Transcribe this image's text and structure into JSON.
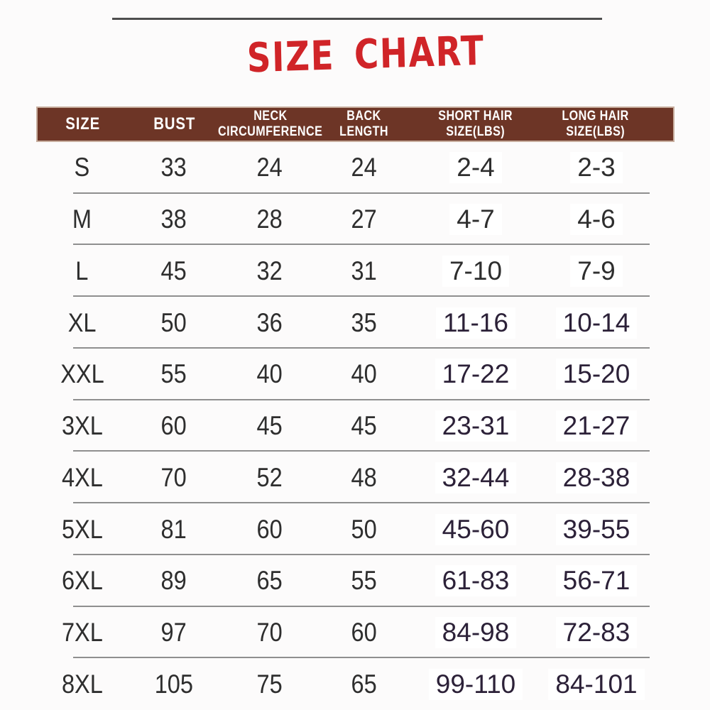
{
  "title": "SIZE CHART",
  "colors": {
    "title_red": "#d02428",
    "header_brown": "#6d3526",
    "header_text": "#ffffff",
    "value_text": "#2e2e2e",
    "plum_text": "#2c2138",
    "divider": "#8f8f8f",
    "top_line": "#4e4e4e"
  },
  "table": {
    "headers": [
      {
        "line1": "SIZE",
        "line2": ""
      },
      {
        "line1": "BUST",
        "line2": ""
      },
      {
        "line1": "NECK",
        "line2": "CIRCUMFERENCE"
      },
      {
        "line1": "BACK",
        "line2": "LENGTH"
      },
      {
        "line1": "SHORT HAIR",
        "line2": "SIZE(LBS)"
      },
      {
        "line1": "LONG HAIR",
        "line2": "SIZE(LBS)"
      }
    ],
    "rows": [
      {
        "cells": [
          "S",
          "33",
          "24",
          "24",
          "2-4",
          "2-3"
        ]
      },
      {
        "cells": [
          "M",
          "38",
          "28",
          "27",
          "4-7",
          "4-6"
        ]
      },
      {
        "cells": [
          "L",
          "45",
          "32",
          "31",
          "7-10",
          "7-9"
        ]
      },
      {
        "cells": [
          "XL",
          "50",
          "36",
          "35",
          "11-16",
          "10-14"
        ]
      },
      {
        "cells": [
          "XXL",
          "55",
          "40",
          "40",
          "17-22",
          "15-20"
        ]
      },
      {
        "cells": [
          "3XL",
          "60",
          "45",
          "45",
          "23-31",
          "21-27"
        ]
      },
      {
        "cells": [
          "4XL",
          "70",
          "52",
          "48",
          "32-44",
          "28-38"
        ]
      },
      {
        "cells": [
          "5XL",
          "81",
          "60",
          "50",
          "45-60",
          "39-55"
        ]
      },
      {
        "cells": [
          "6XL",
          "89",
          "65",
          "55",
          "61-83",
          "56-71"
        ]
      },
      {
        "cells": [
          "7XL",
          "97",
          "70",
          "60",
          "84-98",
          "72-83"
        ]
      },
      {
        "cells": [
          "8XL",
          "105",
          "75",
          "65",
          "99-110",
          "84-101"
        ]
      }
    ]
  }
}
